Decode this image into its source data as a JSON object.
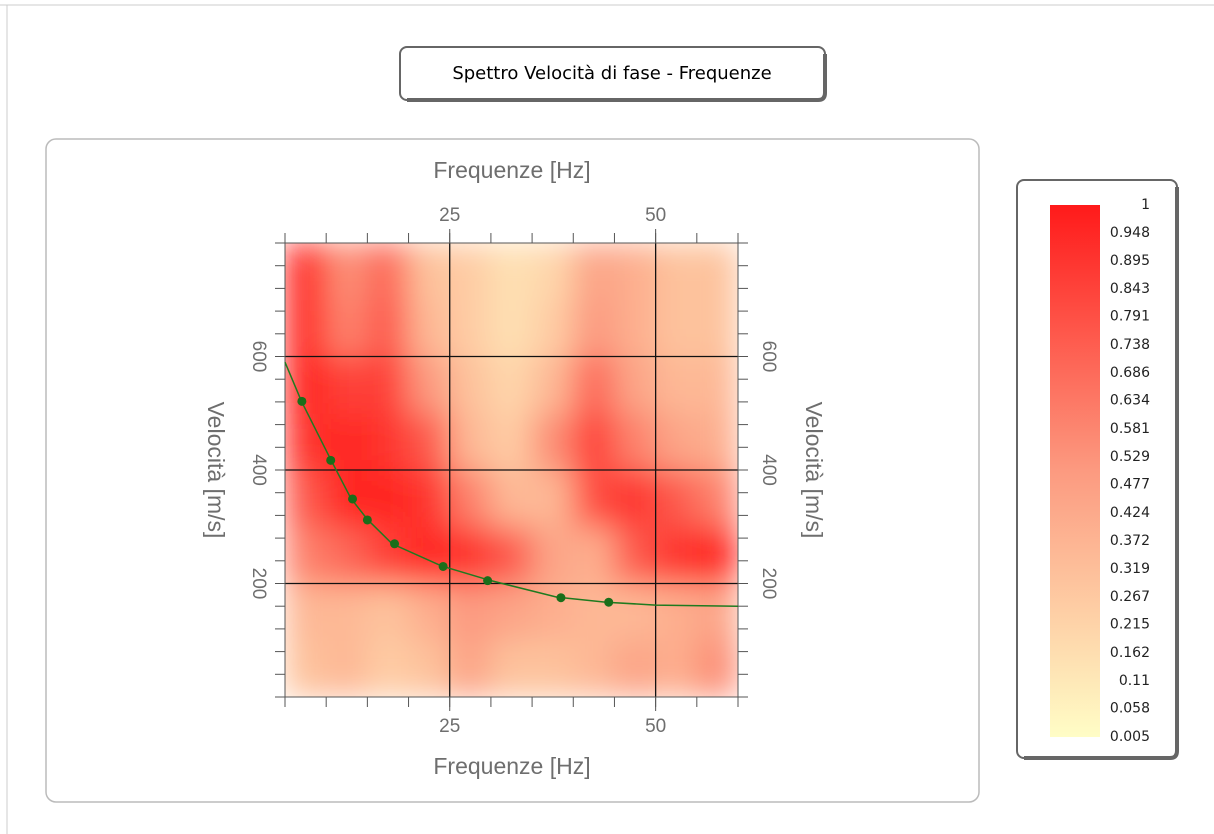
{
  "chart_data": {
    "type": "heatmap",
    "title": "Spettro Velocità di fase - Frequenze",
    "x_label": "Frequenze [Hz]",
    "y_label": "Velocità [m/s]",
    "xlim": [
      5,
      60
    ],
    "xticks": [
      25,
      50
    ],
    "xminorticks": [
      5,
      10,
      15,
      20,
      25,
      30,
      35,
      40,
      45,
      50,
      55,
      60
    ],
    "ylim": [
      0,
      800
    ],
    "yticks": [
      200,
      400,
      600
    ],
    "yminorticks": [
      0,
      40,
      80,
      120,
      160,
      200,
      240,
      280,
      320,
      360,
      400,
      440,
      480,
      520,
      560,
      600,
      640,
      680,
      720,
      760,
      800
    ],
    "grid": true,
    "z_x_bins": [
      5,
      10,
      15,
      20,
      25,
      30,
      35,
      40,
      45,
      50,
      55,
      60
    ],
    "z_y_bins": [
      0,
      100,
      200,
      300,
      400,
      500,
      600,
      700,
      800
    ],
    "z": [
      [
        0.3,
        0.35,
        0.25,
        0.3,
        0.45,
        0.3,
        0.3,
        0.35,
        0.45,
        0.4,
        0.55
      ],
      [
        0.35,
        0.35,
        0.3,
        0.4,
        0.5,
        0.45,
        0.4,
        0.35,
        0.35,
        0.4,
        0.45
      ],
      [
        0.6,
        0.7,
        0.85,
        0.95,
        0.9,
        0.75,
        0.45,
        0.4,
        0.75,
        0.9,
        0.95
      ],
      [
        0.75,
        0.95,
        0.95,
        0.9,
        0.6,
        0.35,
        0.35,
        0.8,
        0.9,
        0.75,
        0.6
      ],
      [
        0.9,
        0.95,
        0.9,
        0.75,
        0.35,
        0.25,
        0.55,
        0.85,
        0.6,
        0.45,
        0.4
      ],
      [
        0.95,
        0.85,
        0.85,
        0.5,
        0.3,
        0.2,
        0.35,
        0.7,
        0.45,
        0.35,
        0.35
      ],
      [
        0.95,
        0.6,
        0.75,
        0.35,
        0.25,
        0.15,
        0.25,
        0.5,
        0.4,
        0.3,
        0.3
      ],
      [
        0.95,
        0.55,
        0.7,
        0.3,
        0.25,
        0.15,
        0.2,
        0.45,
        0.4,
        0.3,
        0.3
      ]
    ],
    "colormap": [
      "#fffdc6",
      "#fc9a80",
      "#ff1a1a"
    ],
    "zlim": [
      0.005,
      1
    ],
    "zticks": [
      1,
      0.948,
      0.895,
      0.843,
      0.791,
      0.738,
      0.686,
      0.634,
      0.581,
      0.529,
      0.477,
      0.424,
      0.372,
      0.319,
      0.267,
      0.215,
      0.162,
      0.11,
      0.058,
      0.005
    ],
    "curve": {
      "color": "#1f7a1f",
      "x": [
        5,
        7,
        10.5,
        13,
        15,
        18,
        24,
        30,
        38,
        44,
        50,
        60
      ],
      "values": [
        590,
        521,
        420,
        350,
        313,
        270,
        231,
        205,
        176,
        167,
        162,
        160
      ]
    },
    "points": {
      "color": "#1a6e1a",
      "x": [
        7.05,
        10.55,
        13.2,
        15.0,
        18.3,
        24.2,
        29.6,
        38.5,
        44.3
      ],
      "values": [
        521,
        417,
        349,
        312,
        270,
        230,
        205,
        175,
        167
      ]
    }
  }
}
